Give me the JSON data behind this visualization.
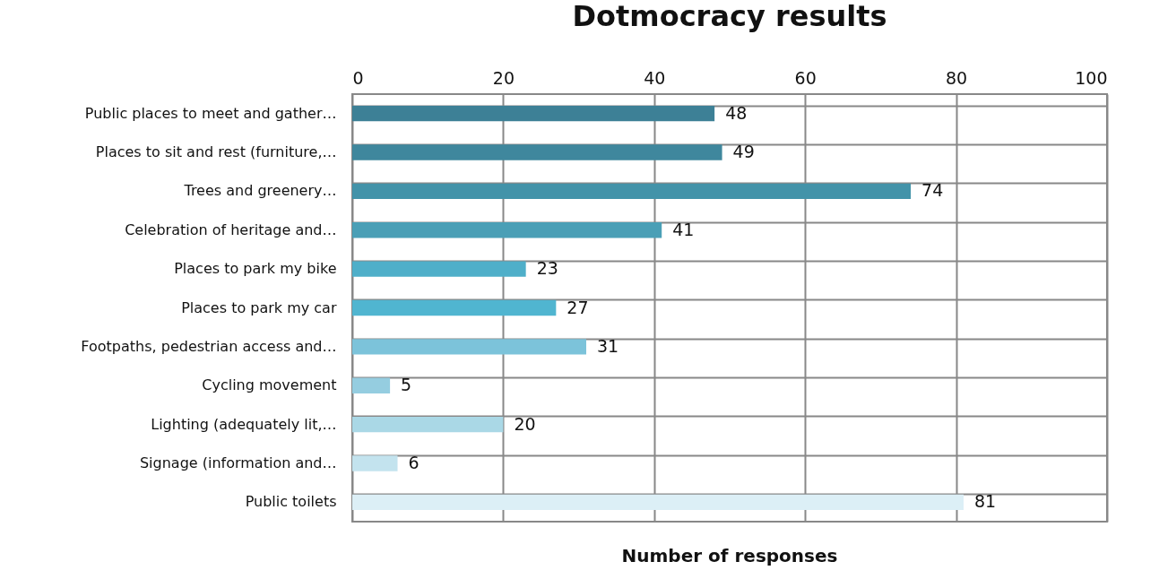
{
  "chart_data": {
    "type": "bar",
    "orientation": "horizontal",
    "title": "Dotmocracy results",
    "xlabel": "Number of responses",
    "categories": [
      "Public places to meet and gather…",
      "Places to sit and rest (furniture,…",
      "Trees and greenery…",
      "Celebration of heritage and…",
      "Places to park my bike",
      "Places to park my car",
      "Footpaths, pedestrian access and…",
      "Cycling movement",
      "Lighting (adequately lit,…",
      "Signage (information and…",
      "Public toilets"
    ],
    "values": [
      48,
      49,
      74,
      41,
      23,
      27,
      31,
      5,
      20,
      6,
      81
    ],
    "colors": [
      "#3d8096",
      "#3f879d",
      "#4393a9",
      "#4a9fb6",
      "#4fafc9",
      "#50b5d0",
      "#7cc3da",
      "#95cde0",
      "#aad8e6",
      "#c3e3ee",
      "#dceff6"
    ],
    "xlim": [
      0,
      100
    ],
    "xticks": [
      0,
      20,
      40,
      60,
      80,
      100
    ],
    "grid": true,
    "data_labels": true
  }
}
